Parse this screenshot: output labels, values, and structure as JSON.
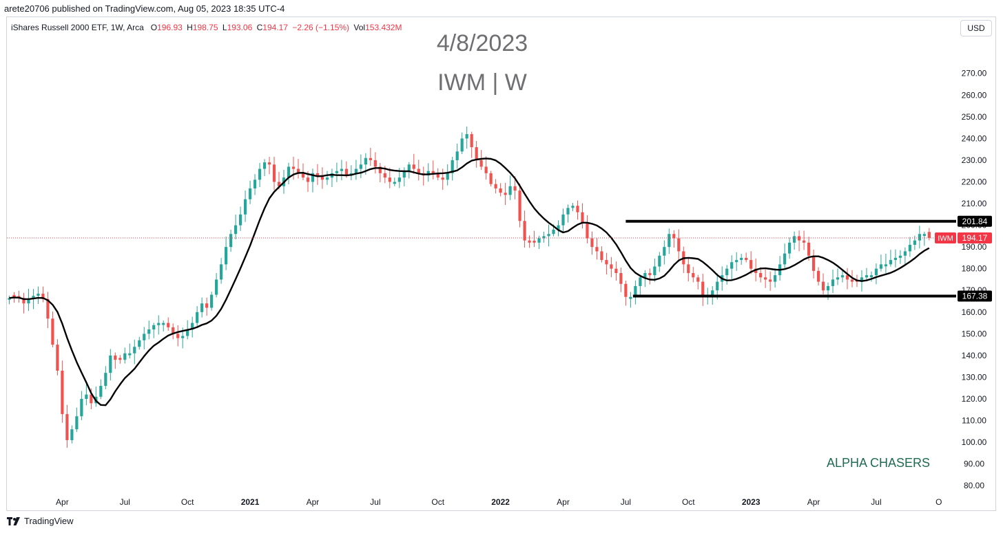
{
  "header": {
    "published": "arete20706 published on TradingView.com, Aug 05, 2023 18:35 UTC-4"
  },
  "legend": {
    "instrument": "iShares Russell 2000 ETF, 1W, Arca",
    "open_label": "O",
    "open": "196.93",
    "high_label": "H",
    "high": "198.75",
    "low_label": "L",
    "low": "193.06",
    "close_label": "C",
    "close": "194.17",
    "change": "−2.26 (−1.15%)",
    "vol_label": "Vol",
    "vol": "153.432M"
  },
  "currency": "USD",
  "title": {
    "date": "4/8/2023",
    "symbol": "IWM | W"
  },
  "watermark": "ALPHA CHASERS",
  "footer": {
    "brand": "TradingView"
  },
  "colors": {
    "up": "#26a69a",
    "down": "#ef5350",
    "ma": "#000000",
    "levels": "#000000",
    "price_tag": "#f23645",
    "axis_text": "#131722"
  },
  "chart_data": {
    "type": "candlestick",
    "ylim": [
      75,
      281
    ],
    "y_ticks": [
      "80.00",
      "90.00",
      "100.00",
      "110.00",
      "120.00",
      "130.00",
      "140.00",
      "150.00",
      "160.00",
      "170.00",
      "180.00",
      "190.00",
      "200.00",
      "210.00",
      "220.00",
      "230.00",
      "240.00",
      "250.00",
      "260.00",
      "270.00"
    ],
    "x_ticks": [
      {
        "label": "Apr",
        "week": 11,
        "bold": false
      },
      {
        "label": "Jul",
        "week": 24,
        "bold": false
      },
      {
        "label": "Oct",
        "week": 37,
        "bold": false
      },
      {
        "label": "2021",
        "week": 50,
        "bold": true
      },
      {
        "label": "Apr",
        "week": 63,
        "bold": false
      },
      {
        "label": "Jul",
        "week": 76,
        "bold": false
      },
      {
        "label": "Oct",
        "week": 89,
        "bold": false
      },
      {
        "label": "2022",
        "week": 102,
        "bold": true
      },
      {
        "label": "Apr",
        "week": 115,
        "bold": false
      },
      {
        "label": "Jul",
        "week": 128,
        "bold": false
      },
      {
        "label": "Oct",
        "week": 141,
        "bold": false
      },
      {
        "label": "2023",
        "week": 154,
        "bold": true
      },
      {
        "label": "Apr",
        "week": 167,
        "bold": false
      },
      {
        "label": "Jul",
        "week": 180,
        "bold": false
      },
      {
        "label": "O",
        "week": 193,
        "bold": false
      }
    ],
    "week_range": [
      -0.5,
      196.6
    ],
    "closes": [
      166.5,
      167,
      166.5,
      164,
      166,
      167.5,
      168.5,
      166,
      157,
      145,
      133,
      113,
      101,
      106,
      112,
      120,
      122,
      118,
      121,
      126,
      132,
      140,
      138,
      138,
      141,
      141,
      144,
      147,
      150,
      152,
      154,
      155,
      155,
      153,
      150,
      148,
      149,
      152,
      155,
      160,
      164,
      162,
      168,
      175,
      182,
      190,
      196,
      200,
      205,
      212,
      217,
      221,
      226,
      229,
      228,
      220,
      218,
      222,
      227,
      226,
      224,
      222,
      220,
      224,
      223,
      221,
      222,
      224,
      225,
      226,
      223,
      224,
      226,
      228,
      231,
      230,
      227,
      224,
      222,
      220,
      220,
      222,
      225,
      228,
      226,
      224,
      223,
      225,
      224,
      222,
      221,
      224,
      230,
      234,
      240,
      242,
      236,
      230,
      227,
      224,
      219,
      217,
      215,
      214,
      218,
      216,
      202,
      193,
      192,
      192,
      194,
      195,
      196,
      198,
      200,
      205,
      208,
      209,
      206,
      201,
      194,
      190,
      188,
      184,
      182,
      180,
      178,
      173,
      167,
      167,
      172,
      176,
      178,
      177,
      181,
      186,
      190,
      196,
      194,
      188,
      182,
      178,
      176,
      174,
      167,
      168,
      170,
      174,
      177,
      180,
      183,
      184,
      185,
      184,
      180,
      178,
      176,
      175,
      174,
      177,
      182,
      187,
      192,
      195,
      193,
      192,
      186,
      179,
      174,
      170,
      172,
      175,
      176,
      177,
      175,
      174,
      174,
      176,
      177,
      177,
      180,
      182,
      182,
      184,
      185,
      186,
      188,
      191,
      193,
      196,
      196,
      194.17
    ],
    "moving_average": {
      "length": 10,
      "type": "SMA"
    },
    "horizontal_levels": [
      {
        "value": 201.84,
        "label": "201.84",
        "from_week": 128,
        "to_week": 196.6
      },
      {
        "value": 167.38,
        "label": "167.38",
        "from_week": 129.5,
        "to_week": 196.6
      }
    ],
    "last_price": {
      "symbol": "IWM",
      "value": 194.17,
      "label": "194.17"
    }
  }
}
